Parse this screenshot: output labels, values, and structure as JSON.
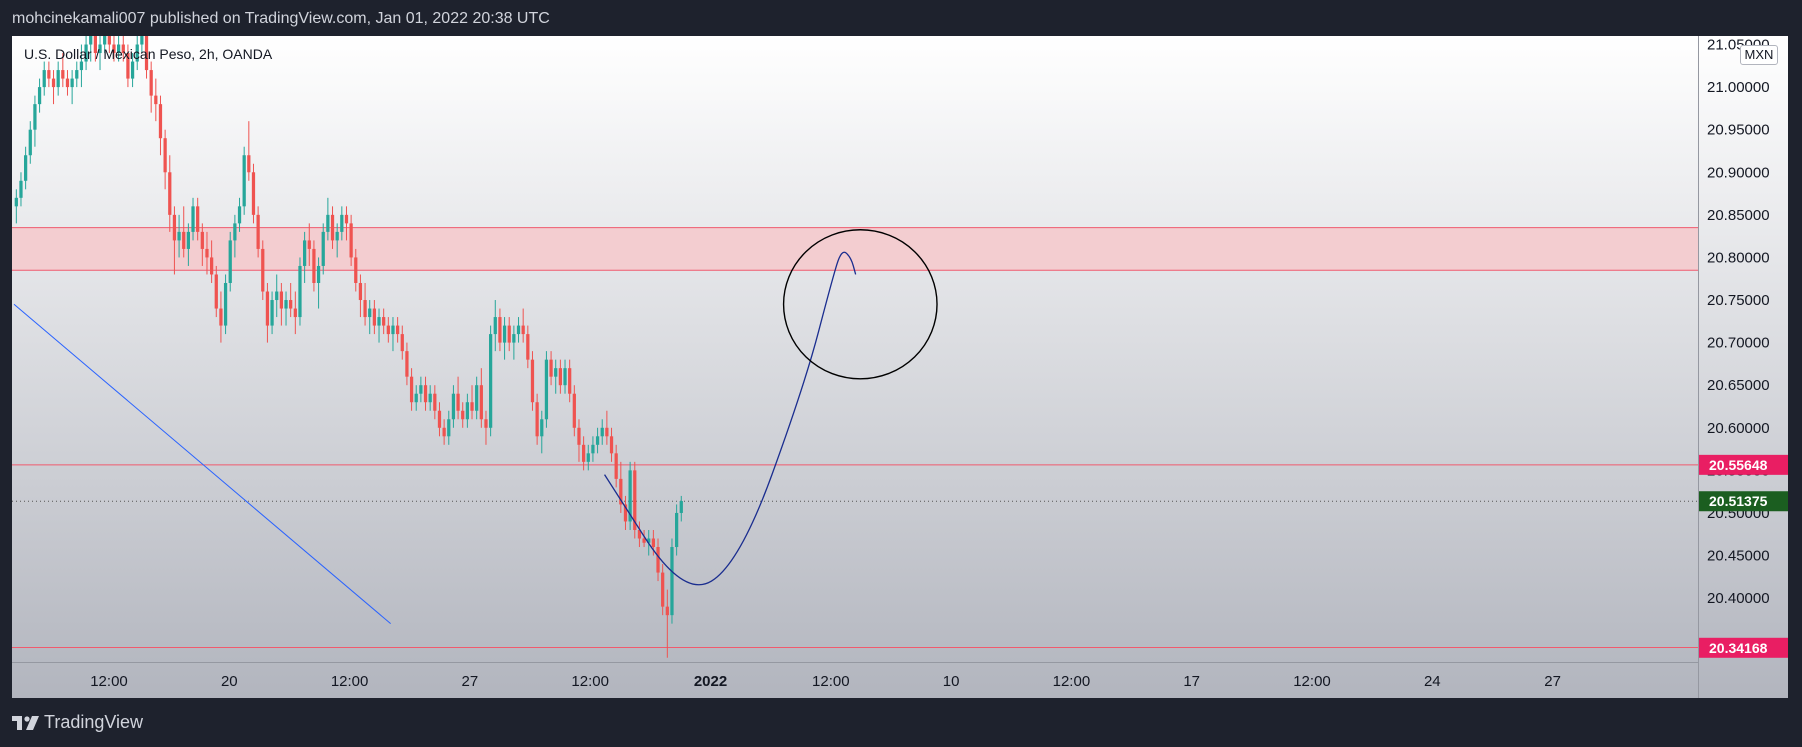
{
  "header": {
    "publisher_line": "mohcinekamali007 published on TradingView.com, Jan 01, 2022 20:38 UTC"
  },
  "symbol": {
    "title": "U.S. Dollar / Mexican Peso, 2h, OANDA",
    "currency": "MXN"
  },
  "footer": {
    "brand": "TradingView"
  },
  "colors": {
    "up": "#26a69a",
    "down": "#ef5350",
    "bg_top": "#ffffff",
    "bg_bottom": "#b2b5be",
    "zone_fill": "#f3cdd0",
    "level_line": "#f05a6e",
    "drawing": "#1a2d8f",
    "tag_red": "#e91e63",
    "tag_green": "#1b5e20"
  },
  "chart_data": {
    "type": "candlestick",
    "instrument": "USD/MXN",
    "interval": "2h",
    "ylim": [
      20.325,
      21.06
    ],
    "y_ticks": [
      "20.40000",
      "20.45000",
      "20.50000",
      "20.55000",
      "20.60000",
      "20.65000",
      "20.70000",
      "20.75000",
      "20.80000",
      "20.85000",
      "20.90000",
      "20.95000",
      "21.00000",
      "21.05000"
    ],
    "x_ticks": [
      "12:00",
      "20",
      "12:00",
      "27",
      "12:00",
      "2022",
      "12:00",
      "10",
      "12:00",
      "17",
      "12:00",
      "24",
      "27"
    ],
    "x_ticks_bold": [
      "2022"
    ],
    "levels": {
      "resistance_zone": [
        20.785,
        20.835
      ],
      "support_upper": 20.5565,
      "support_lower": 20.342
    },
    "current_price": 20.51375,
    "price_tags": [
      {
        "label": "20.55648",
        "value": 20.55648,
        "color": "#e91e63"
      },
      {
        "label": "20.51375",
        "value": 20.51375,
        "color": "#1b5e20"
      },
      {
        "label": "20.34168",
        "value": 20.34168,
        "color": "#e91e63"
      }
    ],
    "candles": [
      [
        20.86,
        20.88,
        20.84,
        20.87
      ],
      [
        20.87,
        20.9,
        20.86,
        20.89
      ],
      [
        20.89,
        20.93,
        20.88,
        20.92
      ],
      [
        20.92,
        20.96,
        20.91,
        20.95
      ],
      [
        20.95,
        20.99,
        20.93,
        20.98
      ],
      [
        20.98,
        21.01,
        20.97,
        21.0
      ],
      [
        21.0,
        21.03,
        20.99,
        21.02
      ],
      [
        21.02,
        21.03,
        21.0,
        21.01
      ],
      [
        21.01,
        21.02,
        20.98,
        21.0
      ],
      [
        21.0,
        21.03,
        20.99,
        21.02
      ],
      [
        21.02,
        21.04,
        21.0,
        21.01
      ],
      [
        21.01,
        21.02,
        20.99,
        21.0
      ],
      [
        21.0,
        21.02,
        20.98,
        21.01
      ],
      [
        21.01,
        21.03,
        21.0,
        21.02
      ],
      [
        21.02,
        21.05,
        21.0,
        21.03
      ],
      [
        21.03,
        21.06,
        21.02,
        21.05
      ],
      [
        21.05,
        21.07,
        21.03,
        21.06
      ],
      [
        21.06,
        21.07,
        21.03,
        21.04
      ],
      [
        21.04,
        21.06,
        21.02,
        21.05
      ],
      [
        21.05,
        21.07,
        21.04,
        21.06
      ],
      [
        21.06,
        21.07,
        21.04,
        21.05
      ],
      [
        21.05,
        21.06,
        21.03,
        21.04
      ],
      [
        21.04,
        21.06,
        21.03,
        21.05
      ],
      [
        21.05,
        21.06,
        21.03,
        21.04
      ],
      [
        21.04,
        21.05,
        21.0,
        21.01
      ],
      [
        21.01,
        21.04,
        21.0,
        21.03
      ],
      [
        21.03,
        21.06,
        21.02,
        21.05
      ],
      [
        21.05,
        21.07,
        21.04,
        21.06
      ],
      [
        21.06,
        21.07,
        21.01,
        21.02
      ],
      [
        21.02,
        21.03,
        20.97,
        20.99
      ],
      [
        20.99,
        21.01,
        20.96,
        20.98
      ],
      [
        20.98,
        20.99,
        20.92,
        20.94
      ],
      [
        20.94,
        20.95,
        20.88,
        20.9
      ],
      [
        20.9,
        20.92,
        20.83,
        20.85
      ],
      [
        20.85,
        20.86,
        20.78,
        20.82
      ],
      [
        20.82,
        20.85,
        20.8,
        20.83
      ],
      [
        20.83,
        20.86,
        20.8,
        20.81
      ],
      [
        20.81,
        20.84,
        20.79,
        20.83
      ],
      [
        20.83,
        20.87,
        20.82,
        20.86
      ],
      [
        20.86,
        20.87,
        20.82,
        20.83
      ],
      [
        20.83,
        20.84,
        20.79,
        20.81
      ],
      [
        20.81,
        20.83,
        20.78,
        20.8
      ],
      [
        20.8,
        20.82,
        20.77,
        20.78
      ],
      [
        20.78,
        20.79,
        20.73,
        20.74
      ],
      [
        20.74,
        20.76,
        20.7,
        20.72
      ],
      [
        20.72,
        20.78,
        20.71,
        20.77
      ],
      [
        20.77,
        20.83,
        20.76,
        20.82
      ],
      [
        20.82,
        20.85,
        20.8,
        20.84
      ],
      [
        20.84,
        20.87,
        20.83,
        20.86
      ],
      [
        20.86,
        20.93,
        20.85,
        20.92
      ],
      [
        20.92,
        20.96,
        20.89,
        20.9
      ],
      [
        20.9,
        20.91,
        20.84,
        20.85
      ],
      [
        20.85,
        20.86,
        20.8,
        20.81
      ],
      [
        20.81,
        20.82,
        20.75,
        20.76
      ],
      [
        20.76,
        20.77,
        20.7,
        20.72
      ],
      [
        20.72,
        20.76,
        20.71,
        20.75
      ],
      [
        20.75,
        20.78,
        20.73,
        20.76
      ],
      [
        20.76,
        20.77,
        20.72,
        20.74
      ],
      [
        20.74,
        20.76,
        20.72,
        20.75
      ],
      [
        20.75,
        20.77,
        20.73,
        20.74
      ],
      [
        20.74,
        20.76,
        20.71,
        20.73
      ],
      [
        20.73,
        20.8,
        20.72,
        20.79
      ],
      [
        20.79,
        20.83,
        20.77,
        20.82
      ],
      [
        20.82,
        20.84,
        20.79,
        20.81
      ],
      [
        20.81,
        20.82,
        20.76,
        20.77
      ],
      [
        20.77,
        20.8,
        20.74,
        20.79
      ],
      [
        20.79,
        20.84,
        20.78,
        20.83
      ],
      [
        20.83,
        20.87,
        20.82,
        20.85
      ],
      [
        20.85,
        20.86,
        20.81,
        20.82
      ],
      [
        20.82,
        20.84,
        20.8,
        20.83
      ],
      [
        20.83,
        20.86,
        20.82,
        20.85
      ],
      [
        20.85,
        20.86,
        20.82,
        20.84
      ],
      [
        20.84,
        20.85,
        20.79,
        20.8
      ],
      [
        20.8,
        20.81,
        20.76,
        20.77
      ],
      [
        20.77,
        20.78,
        20.73,
        20.75
      ],
      [
        20.75,
        20.77,
        20.72,
        20.73
      ],
      [
        20.73,
        20.75,
        20.71,
        20.74
      ],
      [
        20.74,
        20.75,
        20.71,
        20.72
      ],
      [
        20.72,
        20.74,
        20.7,
        20.73
      ],
      [
        20.73,
        20.74,
        20.71,
        20.72
      ],
      [
        20.72,
        20.73,
        20.7,
        20.71
      ],
      [
        20.71,
        20.73,
        20.69,
        20.72
      ],
      [
        20.72,
        20.73,
        20.7,
        20.71
      ],
      [
        20.71,
        20.72,
        20.68,
        20.69
      ],
      [
        20.69,
        20.7,
        20.65,
        20.66
      ],
      [
        20.66,
        20.67,
        20.62,
        20.63
      ],
      [
        20.63,
        20.65,
        20.62,
        20.64
      ],
      [
        20.64,
        20.66,
        20.63,
        20.65
      ],
      [
        20.65,
        20.66,
        20.62,
        20.63
      ],
      [
        20.63,
        20.65,
        20.62,
        20.64
      ],
      [
        20.64,
        20.65,
        20.61,
        20.62
      ],
      [
        20.62,
        20.63,
        20.59,
        20.6
      ],
      [
        20.6,
        20.61,
        20.58,
        20.59
      ],
      [
        20.59,
        20.62,
        20.58,
        20.61
      ],
      [
        20.61,
        20.65,
        20.6,
        20.64
      ],
      [
        20.64,
        20.66,
        20.61,
        20.62
      ],
      [
        20.62,
        20.63,
        20.6,
        20.61
      ],
      [
        20.61,
        20.64,
        20.6,
        20.63
      ],
      [
        20.63,
        20.65,
        20.61,
        20.62
      ],
      [
        20.62,
        20.66,
        20.61,
        20.65
      ],
      [
        20.65,
        20.67,
        20.6,
        20.61
      ],
      [
        20.61,
        20.62,
        20.58,
        20.6
      ],
      [
        20.6,
        20.72,
        20.59,
        20.71
      ],
      [
        20.71,
        20.75,
        20.69,
        20.73
      ],
      [
        20.73,
        20.74,
        20.69,
        20.7
      ],
      [
        20.7,
        20.73,
        20.68,
        20.72
      ],
      [
        20.72,
        20.73,
        20.69,
        20.7
      ],
      [
        20.7,
        20.72,
        20.68,
        20.71
      ],
      [
        20.71,
        20.73,
        20.7,
        20.72
      ],
      [
        20.72,
        20.74,
        20.7,
        20.71
      ],
      [
        20.71,
        20.72,
        20.67,
        20.68
      ],
      [
        20.68,
        20.69,
        20.62,
        20.63
      ],
      [
        20.63,
        20.64,
        20.58,
        20.59
      ],
      [
        20.59,
        20.62,
        20.57,
        20.61
      ],
      [
        20.61,
        20.69,
        20.6,
        20.68
      ],
      [
        20.68,
        20.69,
        20.65,
        20.66
      ],
      [
        20.66,
        20.68,
        20.64,
        20.67
      ],
      [
        20.67,
        20.68,
        20.64,
        20.65
      ],
      [
        20.65,
        20.68,
        20.64,
        20.67
      ],
      [
        20.67,
        20.68,
        20.63,
        20.64
      ],
      [
        20.64,
        20.65,
        20.59,
        20.6
      ],
      [
        20.6,
        20.61,
        20.56,
        20.58
      ],
      [
        20.58,
        20.59,
        20.55,
        20.56
      ],
      [
        20.56,
        20.58,
        20.55,
        20.57
      ],
      [
        20.57,
        20.59,
        20.56,
        20.58
      ],
      [
        20.58,
        20.6,
        20.57,
        20.59
      ],
      [
        20.59,
        20.61,
        20.58,
        20.6
      ],
      [
        20.6,
        20.62,
        20.58,
        20.59
      ],
      [
        20.59,
        20.6,
        20.56,
        20.57
      ],
      [
        20.57,
        20.58,
        20.53,
        20.54
      ],
      [
        20.54,
        20.56,
        20.5,
        20.51
      ],
      [
        20.51,
        20.52,
        20.48,
        20.49
      ],
      [
        20.49,
        20.56,
        20.48,
        20.55
      ],
      [
        20.55,
        20.56,
        20.47,
        20.48
      ],
      [
        20.48,
        20.49,
        20.46,
        20.47
      ],
      [
        20.47,
        20.48,
        20.46,
        20.465
      ],
      [
        20.465,
        20.48,
        20.45,
        20.47
      ],
      [
        20.47,
        20.48,
        20.45,
        20.46
      ],
      [
        20.46,
        20.47,
        20.42,
        20.43
      ],
      [
        20.43,
        20.44,
        20.38,
        20.39
      ],
      [
        20.39,
        20.41,
        20.33,
        20.38
      ],
      [
        20.38,
        20.47,
        20.37,
        20.46
      ],
      [
        20.46,
        20.51,
        20.45,
        20.5
      ],
      [
        20.5,
        20.52,
        20.49,
        20.514
      ]
    ],
    "drawings": {
      "trendline": [
        [
          0,
          20.745
        ],
        [
          81,
          20.37
        ]
      ],
      "forecast_curve": [
        [
          127,
          20.545
        ],
        [
          144,
          20.4
        ],
        [
          156,
          20.44
        ],
        [
          170,
          20.65
        ],
        [
          176,
          20.775
        ],
        [
          178,
          20.81
        ],
        [
          180,
          20.8
        ],
        [
          181,
          20.78
        ]
      ],
      "ellipse": {
        "center_index": 182,
        "center_value": 20.745,
        "half_width_bars": 16.5,
        "half_height_value": 0.0875
      }
    }
  }
}
